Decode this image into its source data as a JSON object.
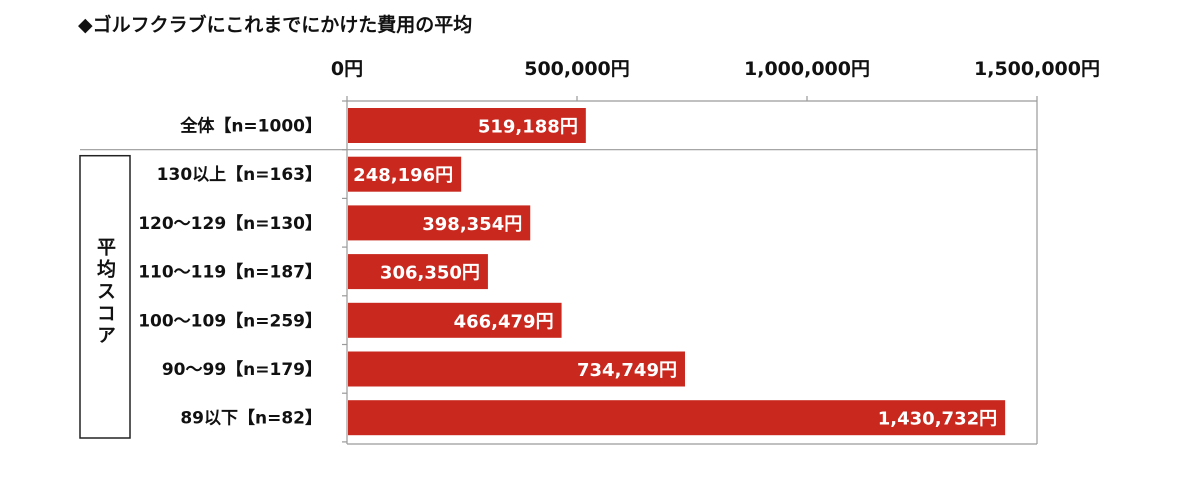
{
  "title": "◆ゴルフクラブにこれまでにかけた費用の平均",
  "colors": {
    "bar": "#c8281e",
    "axis": "#9a9a9a",
    "text": "#111111",
    "label_on_bar": "#ffffff"
  },
  "chart_data": {
    "type": "bar",
    "orientation": "horizontal",
    "title": "◆ゴルフクラブにこれまでにかけた費用の平均",
    "xlabel": "",
    "ylabel": "",
    "xlim": [
      0,
      1500000
    ],
    "x_ticks": [
      0,
      500000,
      1000000,
      1500000
    ],
    "x_tick_labels": [
      "0円",
      "500,000円",
      "1,000,000円",
      "1,500,000円"
    ],
    "tick_position": "top",
    "grid": false,
    "legend": "none",
    "categories": [
      "全体【n=1000】",
      "130以上【n=163】",
      "120～129【n=130】",
      "110～119【n=187】",
      "100～109【n=259】",
      "90～99【n=179】",
      "89以下【n=82】"
    ],
    "values": [
      519188,
      248196,
      398354,
      306350,
      466479,
      734749,
      1430732
    ],
    "data_labels": [
      "519,188円",
      "248,196円",
      "398,354円",
      "306,350円",
      "466,479円",
      "734,749円",
      "1,430,732円"
    ],
    "groups": [
      {
        "label": "平均スコア",
        "categories": [
          1,
          2,
          3,
          4,
          5,
          6
        ]
      }
    ]
  }
}
